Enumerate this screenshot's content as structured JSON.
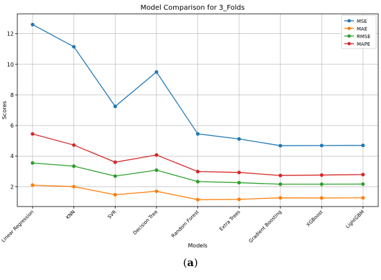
{
  "chart_data": {
    "type": "line",
    "title": "Model Comparison for 3_Folds",
    "xlabel": "Models",
    "ylabel": "Scores",
    "categories": [
      "Linear Regression",
      "KNN",
      "SVR",
      "Decision Tree",
      "Random Forest",
      "Extra Trees",
      "Gradient Boosting",
      "XGBoost",
      "LightGBM"
    ],
    "ylim": [
      0.7,
      13.3
    ],
    "yticks": [
      "2",
      "4",
      "6",
      "8",
      "10",
      "12"
    ],
    "grid": true,
    "legend_position": "top-right",
    "series": [
      {
        "name": "MSE",
        "color": "#1f77b4",
        "values": [
          12.6,
          11.15,
          7.25,
          9.5,
          5.45,
          5.12,
          4.68,
          4.69,
          4.7
        ]
      },
      {
        "name": "MAE",
        "color": "#ff7f0e",
        "values": [
          2.1,
          2.0,
          1.47,
          1.7,
          1.15,
          1.17,
          1.27,
          1.26,
          1.27
        ]
      },
      {
        "name": "RMSE",
        "color": "#2ca02c",
        "values": [
          3.55,
          3.34,
          2.69,
          3.08,
          2.33,
          2.26,
          2.16,
          2.16,
          2.17
        ]
      },
      {
        "name": "MAPE",
        "color": "#d62728",
        "values": [
          5.45,
          4.72,
          3.6,
          4.07,
          2.99,
          2.93,
          2.73,
          2.76,
          2.79
        ]
      }
    ]
  },
  "caption": {
    "label": "a"
  }
}
